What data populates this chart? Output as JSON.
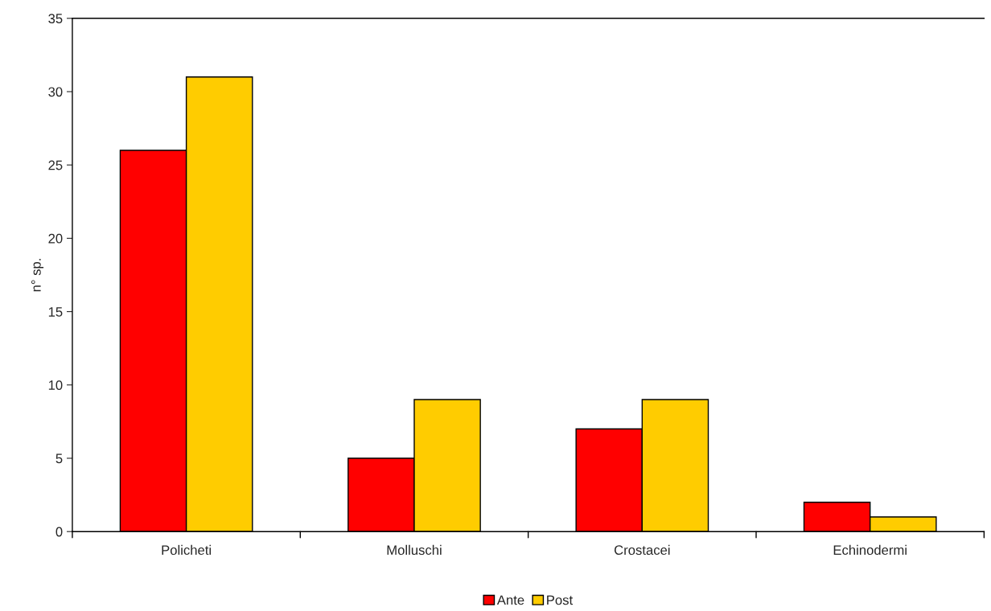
{
  "chart_data": {
    "type": "bar",
    "ylabel": "n° sp.",
    "categories": [
      "Policheti",
      "Molluschi",
      "Crostacei",
      "Echinodermi"
    ],
    "series": [
      {
        "name": "Ante",
        "color": "#ff0000",
        "values": [
          26,
          5,
          7,
          2
        ]
      },
      {
        "name": "Post",
        "color": "#ffcc00",
        "values": [
          31,
          9,
          9,
          1
        ]
      }
    ],
    "ylim": [
      0,
      35
    ],
    "yticks": [
      0,
      5,
      10,
      15,
      20,
      25,
      30,
      35
    ],
    "grid": false,
    "legend": "bottom"
  }
}
